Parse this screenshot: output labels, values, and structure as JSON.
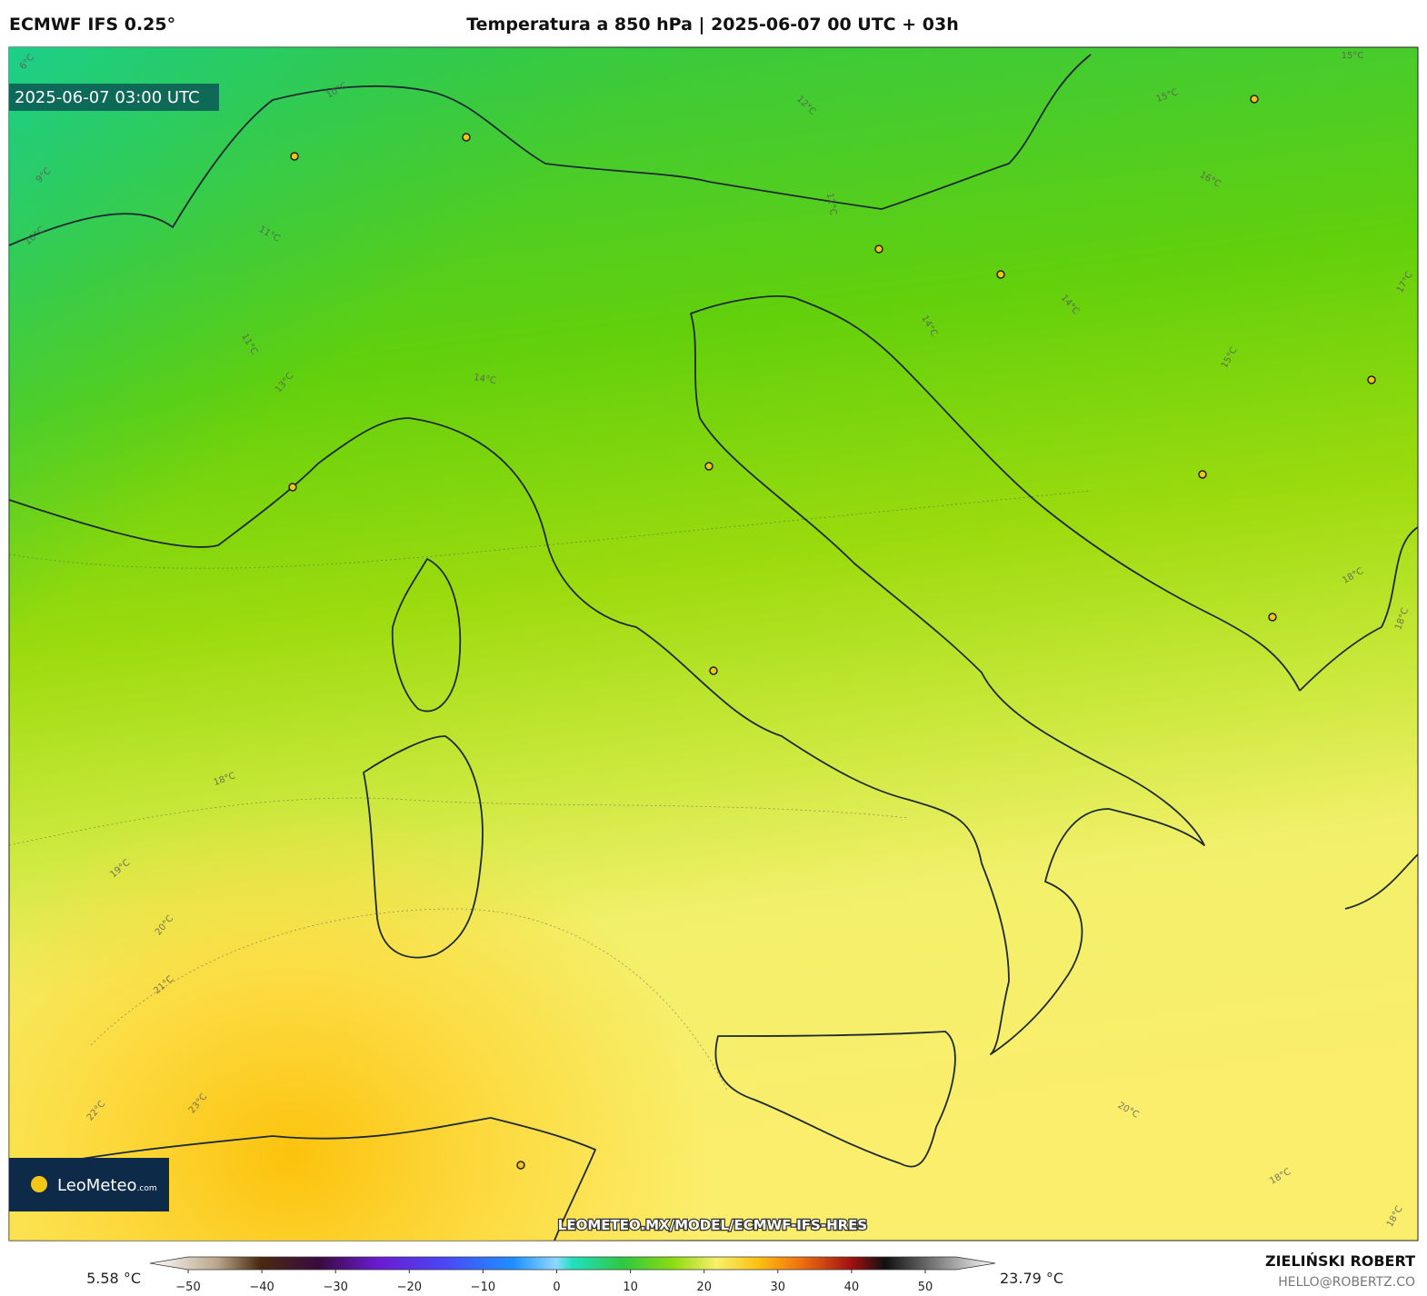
{
  "header": {
    "model": "ECMWF IFS 0.25°",
    "title": "Temperatura a 850 hPa | 2025-06-07 00 UTC + 03h"
  },
  "map": {
    "timestamp": "2025-06-07 03:00 UTC",
    "watermark": "LEOMETEO.MX/MODEL/ECMWF-IFS-HRES",
    "contour_labels": [
      "6°C",
      "10°C",
      "9°C",
      "10°C",
      "11°C",
      "11°C",
      "12°C",
      "12°C",
      "13°C",
      "14°C",
      "14°C",
      "14°C",
      "15°C",
      "15°C",
      "15°C",
      "16°C",
      "17°C",
      "18°C",
      "18°C",
      "18°C",
      "18°C",
      "19°C",
      "20°C",
      "21°C",
      "22°C",
      "23°C",
      "20°C",
      "18°C"
    ]
  },
  "logo": {
    "name": "LeoMeteo",
    "suffix": ".com"
  },
  "colorbar": {
    "min": "5.58 °C",
    "max": "23.79 °C",
    "ticks": [
      "−50",
      "−40",
      "−30",
      "−20",
      "−10",
      "0",
      "10",
      "20",
      "30",
      "40",
      "50"
    ]
  },
  "footer": {
    "author": "ZIELIŃSKI ROBERT",
    "email": "HELLO@ROBERTZ.CO"
  }
}
